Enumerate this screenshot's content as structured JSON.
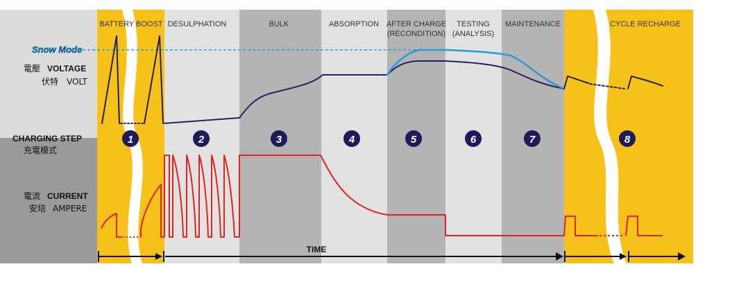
{
  "stages": [
    {
      "label": "BATTERY BOOST",
      "sub": ""
    },
    {
      "label": "DESULPHATION",
      "sub": ""
    },
    {
      "label": "BULK",
      "sub": ""
    },
    {
      "label": "ABSORPTION",
      "sub": ""
    },
    {
      "label": "AFTER CHARGE",
      "sub": "(RECONDITION)"
    },
    {
      "label": "TESTING",
      "sub": "(ANALYSIS)"
    },
    {
      "label": "MAINTENANCE",
      "sub": ""
    },
    {
      "label": "CYCLE RECHARGE",
      "sub": ""
    }
  ],
  "steps": [
    "1",
    "2",
    "3",
    "4",
    "5",
    "6",
    "7",
    "8"
  ],
  "labels": {
    "snow_mode": "Snow Mode",
    "voltage_cn": "電壓",
    "voltage_en": "VOLTAGE",
    "volt_cn": "伏特",
    "volt_en": "VOLT",
    "charging_step_en": "CHARGING STEP",
    "charging_step_cn": "充電模式",
    "current_cn": "電流",
    "current_en": "CURRENT",
    "ampere_cn": "安培",
    "ampere_en": "AMPERE",
    "time": "TIME"
  },
  "colors": {
    "yellow": "#f6c21a",
    "grey_light": "#e2e2e2",
    "grey_dark": "#b4b4b4",
    "left_light": "#dcdcdc",
    "left_dark": "#9a9a9a",
    "voltage_line": "#26215e",
    "snow_line": "#2a9ad6",
    "current_line": "#e0231f",
    "step_circle": "#1f1a5a"
  }
}
